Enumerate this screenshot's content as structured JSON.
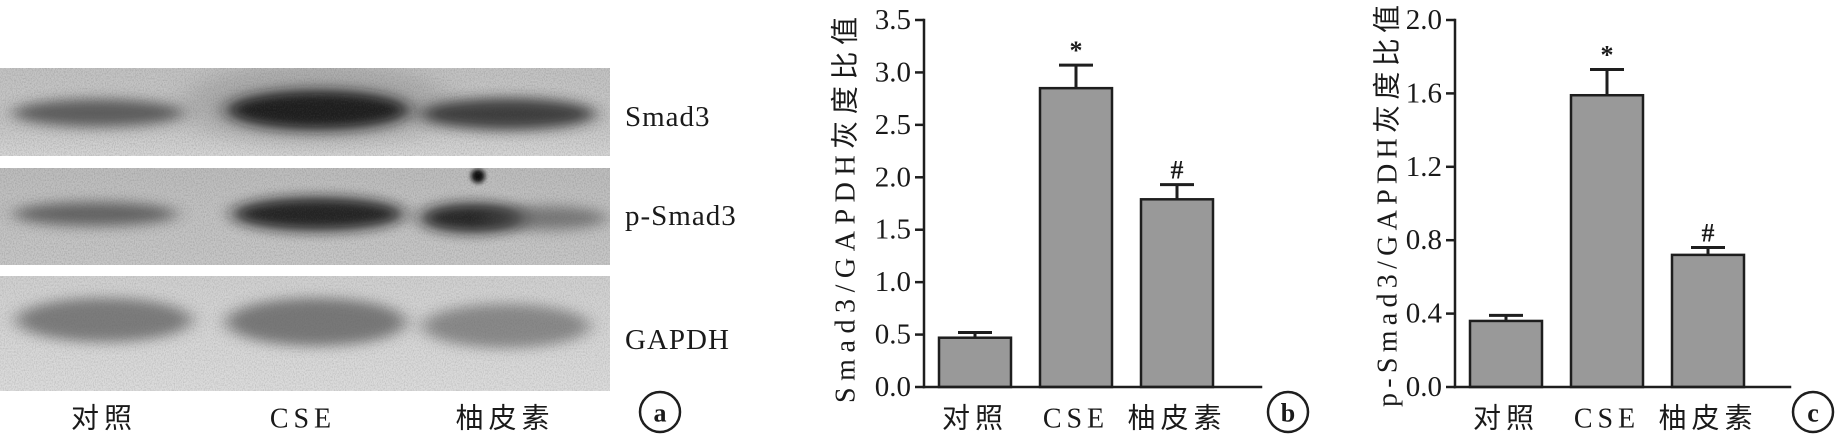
{
  "blot": {
    "panel_label": "a",
    "rows": [
      {
        "label": "Smad3"
      },
      {
        "label": "p-Smad3"
      },
      {
        "label": "GAPDH"
      }
    ],
    "lanes": [
      "对照",
      "CSE",
      "柚皮素"
    ]
  },
  "colors": {
    "bar_fill": "#999999",
    "bar_stroke": "#1e1e1e",
    "axis": "#1e1e1e"
  },
  "chart_data": [
    {
      "panel_label": "b",
      "type": "bar",
      "categories": [
        "对照",
        "CSE",
        "柚皮素"
      ],
      "values": [
        0.47,
        2.85,
        1.79
      ],
      "errors": [
        0.05,
        0.22,
        0.14
      ],
      "markers": [
        "",
        "*",
        "#"
      ],
      "ylabel": "Smad3/GAPDH灰度比值",
      "ylim": [
        0,
        3.5
      ],
      "yticks": [
        "0.0",
        "0.5",
        "1.0",
        "1.5",
        "2.0",
        "2.5",
        "3.0",
        "3.5"
      ],
      "grid": false
    },
    {
      "panel_label": "c",
      "type": "bar",
      "categories": [
        "对照",
        "CSE",
        "柚皮素"
      ],
      "values": [
        0.36,
        1.59,
        0.72
      ],
      "errors": [
        0.03,
        0.14,
        0.04
      ],
      "markers": [
        "",
        "*",
        "#"
      ],
      "ylabel": "p-Smad3/GAPDH灰度比值",
      "ylim": [
        0,
        2.0
      ],
      "yticks": [
        "0.0",
        "0.4",
        "0.8",
        "1.2",
        "1.6",
        "2.0"
      ],
      "grid": false
    }
  ]
}
